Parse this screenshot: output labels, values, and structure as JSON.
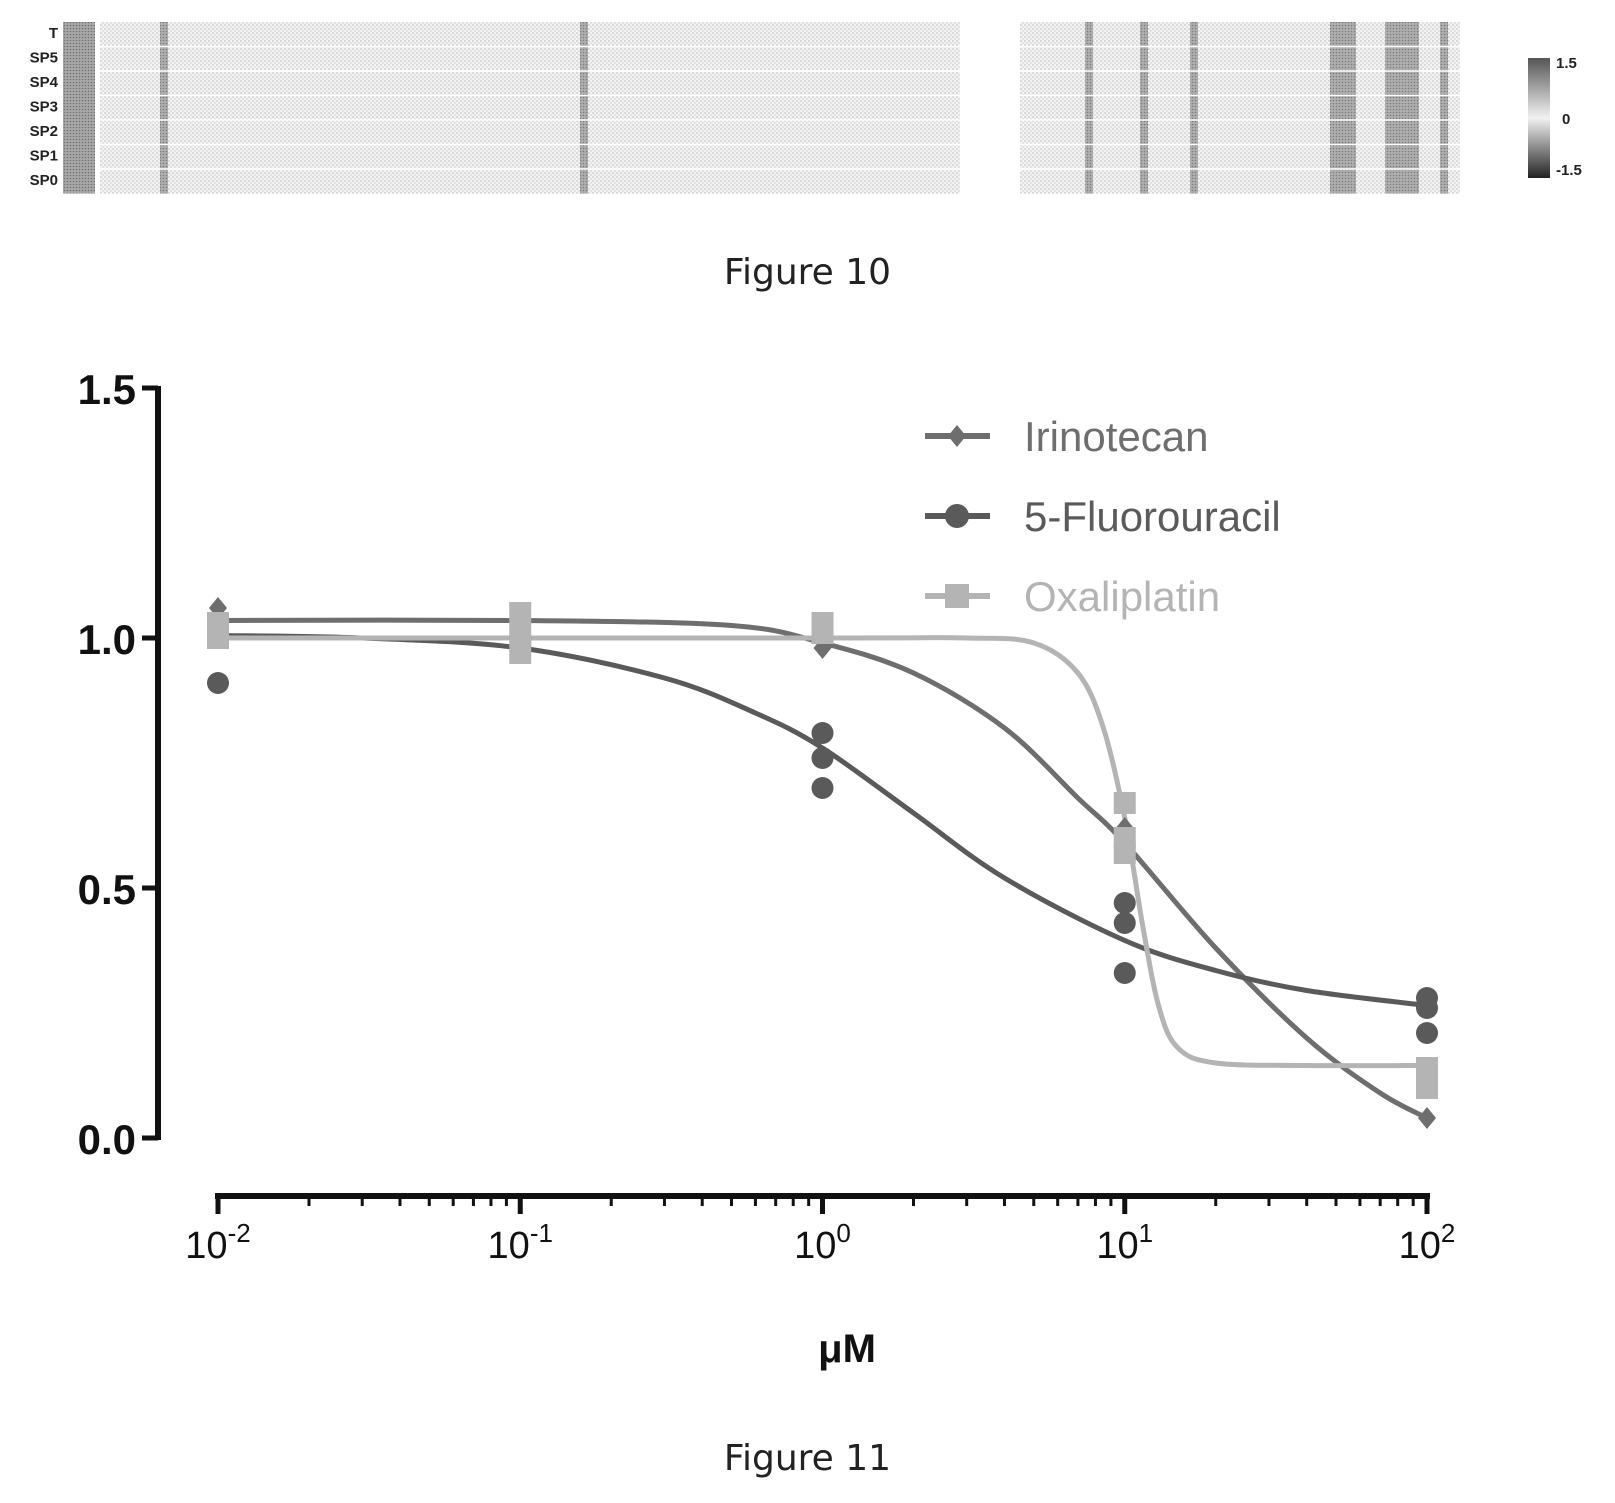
{
  "figure10": {
    "caption": "Figure 10",
    "row_labels": [
      "T",
      "SP5",
      "SP4",
      "SP3",
      "SP2",
      "SP1",
      "SP0"
    ],
    "colorbar_ticks": [
      "1.5",
      "0",
      "-1.5"
    ],
    "colorbar_range": [
      -1.5,
      1.5
    ]
  },
  "figure11": {
    "caption": "Figure 11"
  },
  "chart_data": {
    "type": "scatter",
    "title": "",
    "xlabel": "μM",
    "ylabel": "",
    "xscale": "log",
    "xlim": [
      0.01,
      100
    ],
    "ylim": [
      0,
      1.5
    ],
    "xticks": [
      {
        "value": 0.01,
        "base": "10",
        "exp": "-2"
      },
      {
        "value": 0.1,
        "base": "10",
        "exp": "-1"
      },
      {
        "value": 1,
        "base": "10",
        "exp": "0"
      },
      {
        "value": 10,
        "base": "10",
        "exp": "1"
      },
      {
        "value": 100,
        "base": "10",
        "exp": "2"
      }
    ],
    "yticks": [
      "0.0",
      "0.5",
      "1.0",
      "1.5"
    ],
    "legend_position": "top-right",
    "grid": false,
    "series": [
      {
        "name": "Irinotecan",
        "marker": "diamond",
        "color": "#6e6e6e",
        "points": [
          [
            0.01,
            1.06
          ],
          [
            0.01,
            1.02
          ],
          [
            0.1,
            1.04
          ],
          [
            0.1,
            1.01
          ],
          [
            1,
            1.0
          ],
          [
            1,
            0.98
          ],
          [
            10,
            0.62
          ],
          [
            10,
            0.58
          ],
          [
            100,
            0.04
          ]
        ],
        "curve": [
          [
            0.01,
            1.035
          ],
          [
            0.1,
            1.035
          ],
          [
            0.5,
            1.025
          ],
          [
            1,
            0.99
          ],
          [
            2,
            0.93
          ],
          [
            4,
            0.82
          ],
          [
            7,
            0.68
          ],
          [
            10,
            0.59
          ],
          [
            20,
            0.38
          ],
          [
            40,
            0.2
          ],
          [
            70,
            0.09
          ],
          [
            100,
            0.04
          ]
        ]
      },
      {
        "name": "5-Fluorouracil",
        "marker": "circle",
        "color": "#5a5a5a",
        "points": [
          [
            0.01,
            0.91
          ],
          [
            0.01,
            1.0
          ],
          [
            0.01,
            1.02
          ],
          [
            0.1,
            1.0
          ],
          [
            0.1,
            0.98
          ],
          [
            1,
            0.81
          ],
          [
            1,
            0.76
          ],
          [
            1,
            0.7
          ],
          [
            10,
            0.47
          ],
          [
            10,
            0.43
          ],
          [
            10,
            0.33
          ],
          [
            100,
            0.28
          ],
          [
            100,
            0.26
          ],
          [
            100,
            0.21
          ]
        ],
        "curve": [
          [
            0.01,
            1.005
          ],
          [
            0.03,
            1.0
          ],
          [
            0.1,
            0.98
          ],
          [
            0.3,
            0.92
          ],
          [
            0.6,
            0.85
          ],
          [
            1,
            0.78
          ],
          [
            2,
            0.65
          ],
          [
            4,
            0.52
          ],
          [
            10,
            0.395
          ],
          [
            20,
            0.335
          ],
          [
            40,
            0.295
          ],
          [
            100,
            0.265
          ]
        ]
      },
      {
        "name": "Oxaliplatin",
        "marker": "square",
        "color": "#b4b4b4",
        "points": [
          [
            0.01,
            1.03
          ],
          [
            0.01,
            1.0
          ],
          [
            0.1,
            1.05
          ],
          [
            0.1,
            1.01
          ],
          [
            0.1,
            0.97
          ],
          [
            1,
            1.03
          ],
          [
            1,
            1.01
          ],
          [
            10,
            0.67
          ],
          [
            10,
            0.6
          ],
          [
            10,
            0.57
          ],
          [
            100,
            0.14
          ],
          [
            100,
            0.12
          ],
          [
            100,
            0.1
          ]
        ],
        "curve": [
          [
            0.01,
            1.0
          ],
          [
            1,
            1.0
          ],
          [
            3,
            1.0
          ],
          [
            5,
            0.99
          ],
          [
            7,
            0.93
          ],
          [
            8.5,
            0.82
          ],
          [
            10,
            0.64
          ],
          [
            11.5,
            0.42
          ],
          [
            13,
            0.26
          ],
          [
            15,
            0.18
          ],
          [
            20,
            0.15
          ],
          [
            40,
            0.145
          ],
          [
            100,
            0.145
          ]
        ]
      }
    ]
  }
}
